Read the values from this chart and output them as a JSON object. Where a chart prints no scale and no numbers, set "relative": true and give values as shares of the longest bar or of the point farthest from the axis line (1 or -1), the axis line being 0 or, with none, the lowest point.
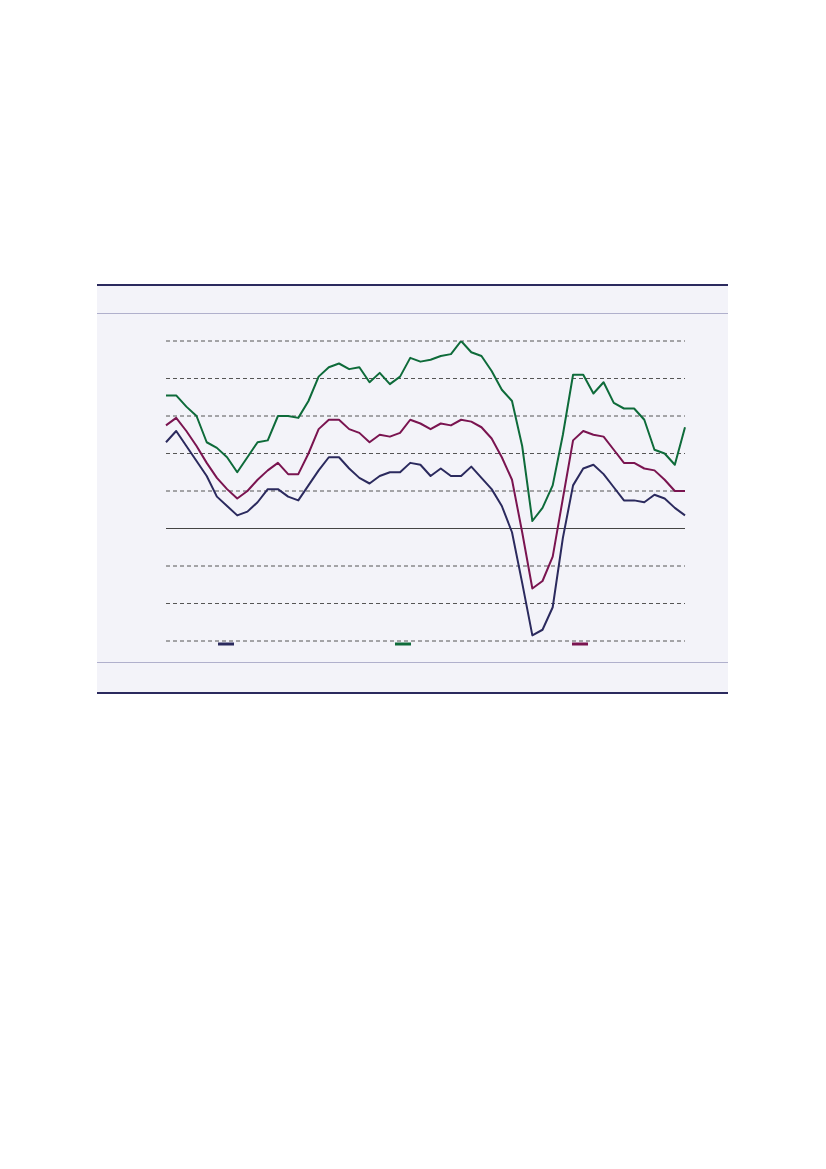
{
  "chart_data": {
    "type": "line",
    "relative": true,
    "grid": "y",
    "marker": "none",
    "line_style": "solid",
    "categories": [
      null,
      null,
      null,
      null,
      null,
      null,
      null,
      null,
      null,
      null,
      null,
      null,
      null,
      null,
      null,
      null,
      null,
      null,
      null,
      null,
      null,
      null,
      null,
      null,
      null,
      null,
      null,
      null,
      null,
      null,
      null,
      null,
      null,
      null,
      null,
      null,
      null,
      null,
      null,
      null,
      null,
      null,
      null,
      null,
      null,
      null,
      null,
      null,
      null,
      null,
      null,
      null
    ],
    "series": [
      {
        "color": "#2b2a5e",
        "values": [
          0.46,
          0.52,
          0.44,
          0.36,
          0.28,
          0.17,
          0.12,
          0.07,
          0.09,
          0.14,
          0.21,
          0.21,
          0.17,
          0.15,
          0.23,
          0.31,
          0.38,
          0.38,
          0.32,
          0.27,
          0.24,
          0.28,
          0.3,
          0.3,
          0.35,
          0.34,
          0.28,
          0.32,
          0.28,
          0.28,
          0.33,
          0.27,
          0.21,
          0.12,
          -0.02,
          -0.29,
          -0.57,
          -0.54,
          -0.42,
          -0.05,
          0.23,
          0.32,
          0.34,
          0.29,
          0.22,
          0.15,
          0.15,
          0.14,
          0.18,
          0.16,
          0.11,
          0.07
        ]
      },
      {
        "color": "#0e6b3a",
        "values": [
          0.71,
          0.71,
          0.65,
          0.6,
          0.46,
          0.43,
          0.38,
          0.3,
          0.38,
          0.46,
          0.47,
          0.6,
          0.6,
          0.59,
          0.68,
          0.81,
          0.86,
          0.88,
          0.85,
          0.86,
          0.78,
          0.83,
          0.77,
          0.81,
          0.91,
          0.89,
          0.9,
          0.92,
          0.93,
          1,
          0.94,
          0.92,
          0.84,
          0.74,
          0.68,
          0.44,
          0.04,
          0.11,
          0.23,
          0.5,
          0.82,
          0.82,
          0.72,
          0.78,
          0.67,
          0.64,
          0.64,
          0.58,
          0.42,
          0.4,
          0.34,
          0.54
        ]
      },
      {
        "color": "#7a1450",
        "values": [
          0.55,
          0.59,
          0.52,
          0.44,
          0.35,
          0.27,
          0.21,
          0.16,
          0.2,
          0.26,
          0.31,
          0.35,
          0.29,
          0.29,
          0.4,
          0.53,
          0.58,
          0.58,
          0.53,
          0.51,
          0.46,
          0.5,
          0.49,
          0.51,
          0.58,
          0.56,
          0.53,
          0.56,
          0.55,
          0.58,
          0.57,
          0.54,
          0.48,
          0.38,
          0.26,
          -0.02,
          -0.32,
          -0.28,
          -0.15,
          0.16,
          0.47,
          0.52,
          0.5,
          0.49,
          0.42,
          0.35,
          0.35,
          0.32,
          0.31,
          0.26,
          0.2,
          0.2
        ]
      }
    ]
  }
}
